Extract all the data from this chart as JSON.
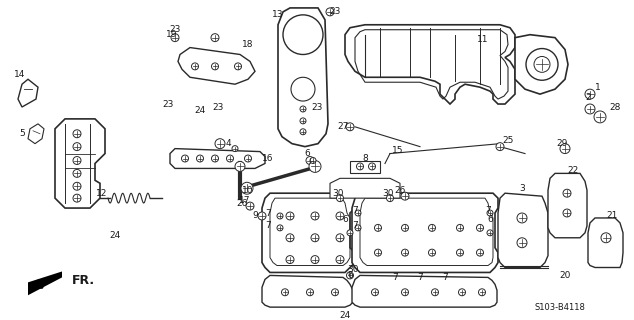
{
  "bg_color": "#ffffff",
  "diagram_code": "S103-B4118",
  "line_color": "#2a2a2a",
  "text_color": "#1a1a1a",
  "font_size": 6.5,
  "figsize": [
    6.34,
    3.2
  ],
  "dpi": 100
}
